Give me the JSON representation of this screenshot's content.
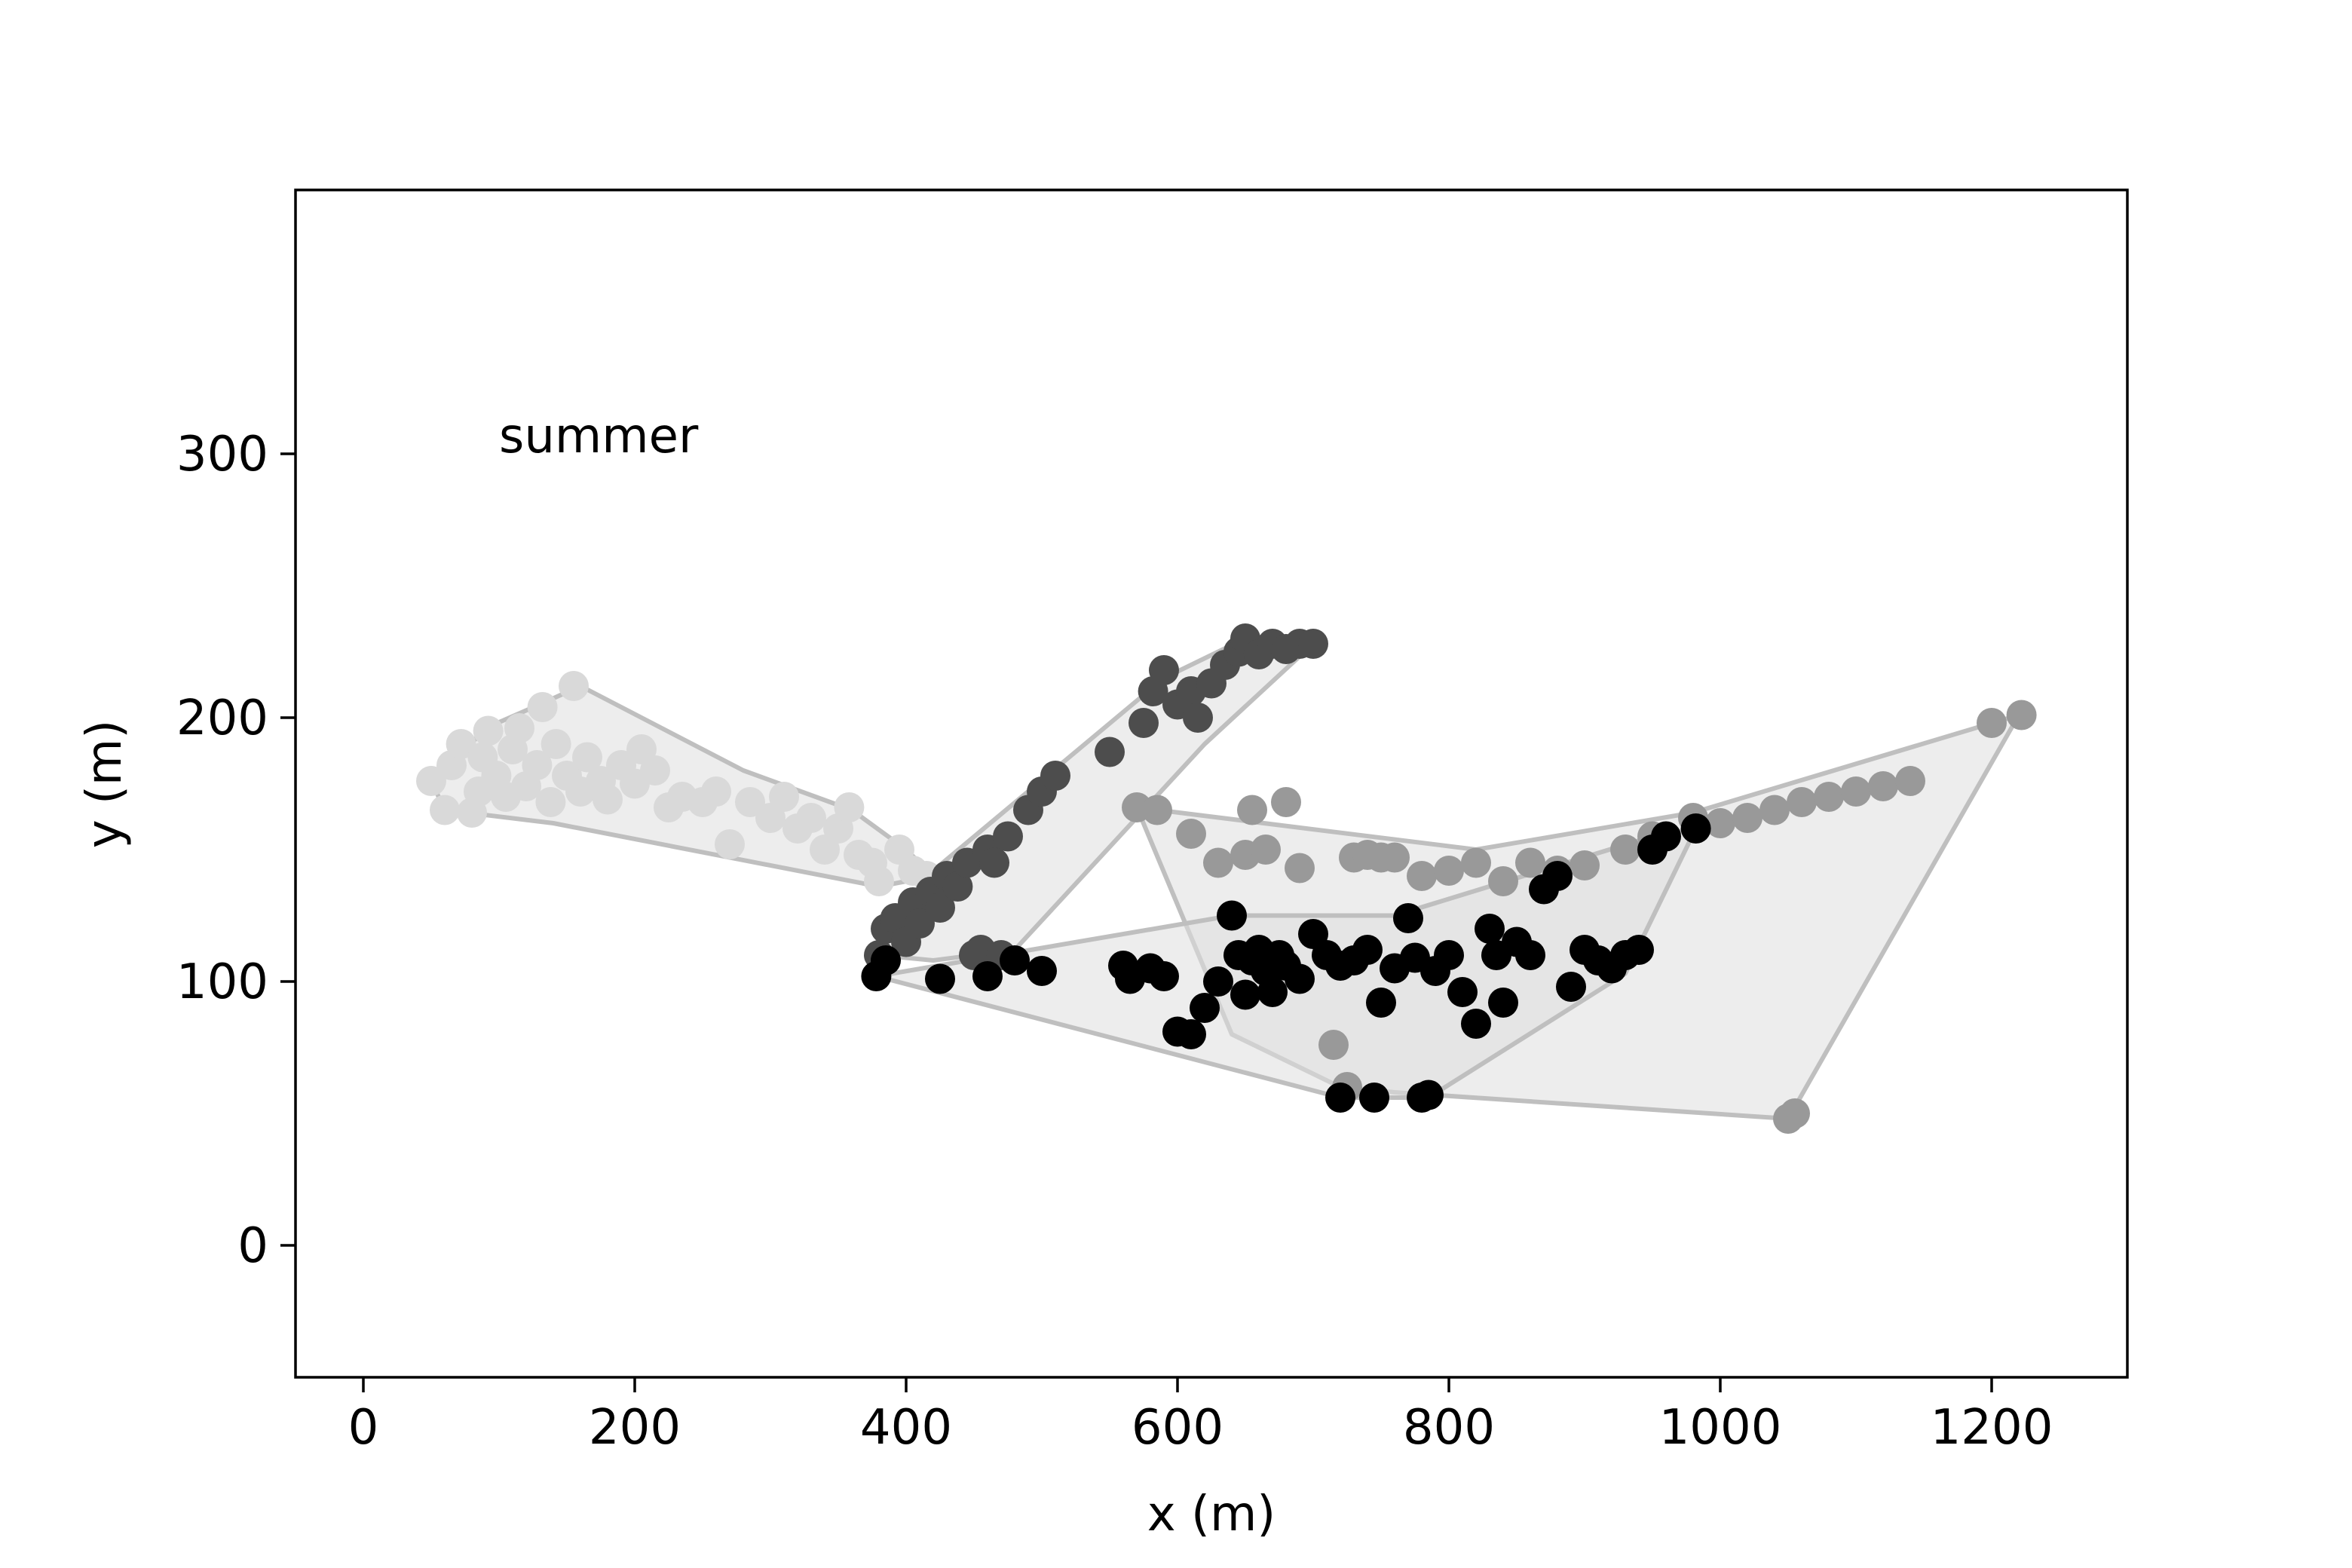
{
  "chart_data": {
    "type": "scatter",
    "title": "",
    "xlabel": "x (m)",
    "ylabel": "y (m)",
    "xlim": [
      -50,
      1300
    ],
    "ylim": [
      -50,
      400
    ],
    "xticks": [
      0,
      200,
      400,
      600,
      800,
      1000,
      1200
    ],
    "yticks": [
      0,
      100,
      200,
      300
    ],
    "grid": false,
    "annotations": [
      {
        "text": "summer",
        "x": 100,
        "y": 300
      }
    ],
    "series": [
      {
        "color": "#d9d9d9",
        "hull": [
          [
            50,
            176
          ],
          [
            60,
            165
          ],
          [
            140,
            160
          ],
          [
            380,
            136
          ],
          [
            420,
            140
          ],
          [
            400,
            150
          ],
          [
            360,
            165
          ],
          [
            280,
            180
          ],
          [
            160,
            212
          ],
          [
            130,
            205
          ],
          [
            90,
            196
          ],
          [
            70,
            185
          ]
        ],
        "points": [
          [
            50,
            176
          ],
          [
            60,
            165
          ],
          [
            65,
            182
          ],
          [
            72,
            190
          ],
          [
            80,
            164
          ],
          [
            85,
            172
          ],
          [
            88,
            185
          ],
          [
            92,
            195
          ],
          [
            98,
            178
          ],
          [
            105,
            170
          ],
          [
            110,
            188
          ],
          [
            115,
            196
          ],
          [
            120,
            174
          ],
          [
            128,
            182
          ],
          [
            132,
            204
          ],
          [
            138,
            168
          ],
          [
            142,
            190
          ],
          [
            150,
            178
          ],
          [
            155,
            212
          ],
          [
            160,
            172
          ],
          [
            165,
            185
          ],
          [
            175,
            176
          ],
          [
            180,
            169
          ],
          [
            190,
            182
          ],
          [
            200,
            175
          ],
          [
            205,
            188
          ],
          [
            215,
            180
          ],
          [
            225,
            166
          ],
          [
            235,
            170
          ],
          [
            250,
            168
          ],
          [
            260,
            172
          ],
          [
            270,
            152
          ],
          [
            285,
            168
          ],
          [
            300,
            162
          ],
          [
            310,
            170
          ],
          [
            320,
            158
          ],
          [
            330,
            162
          ],
          [
            340,
            150
          ],
          [
            350,
            158
          ],
          [
            358,
            166
          ],
          [
            365,
            148
          ],
          [
            375,
            145
          ],
          [
            380,
            138
          ],
          [
            395,
            150
          ],
          [
            405,
            142
          ],
          [
            415,
            140
          ]
        ]
      },
      {
        "color": "#4d4d4d",
        "hull": [
          [
            380,
            110
          ],
          [
            385,
            118
          ],
          [
            420,
            142
          ],
          [
            590,
            215
          ],
          [
            650,
            230
          ],
          [
            700,
            228
          ],
          [
            620,
            190
          ],
          [
            480,
            112
          ],
          [
            420,
            108
          ]
        ],
        "points": [
          [
            380,
            110
          ],
          [
            385,
            120
          ],
          [
            392,
            124
          ],
          [
            400,
            115
          ],
          [
            405,
            130
          ],
          [
            410,
            122
          ],
          [
            418,
            134
          ],
          [
            425,
            128
          ],
          [
            430,
            140
          ],
          [
            438,
            136
          ],
          [
            445,
            145
          ],
          [
            450,
            110
          ],
          [
            455,
            112
          ],
          [
            460,
            150
          ],
          [
            465,
            145
          ],
          [
            470,
            110
          ],
          [
            475,
            155
          ],
          [
            490,
            165
          ],
          [
            500,
            172
          ],
          [
            510,
            178
          ],
          [
            550,
            187
          ],
          [
            575,
            198
          ],
          [
            582,
            210
          ],
          [
            590,
            218
          ],
          [
            600,
            205
          ],
          [
            610,
            210
          ],
          [
            615,
            200
          ],
          [
            625,
            213
          ],
          [
            635,
            220
          ],
          [
            645,
            225
          ],
          [
            650,
            230
          ],
          [
            660,
            224
          ],
          [
            670,
            228
          ],
          [
            680,
            226
          ],
          [
            690,
            228
          ],
          [
            700,
            228
          ]
        ]
      },
      {
        "color": "#999999",
        "hull": [
          [
            570,
            166
          ],
          [
            640,
            80
          ],
          [
            720,
            60
          ],
          [
            760,
            58
          ],
          [
            1050,
            48
          ],
          [
            1220,
            201
          ],
          [
            980,
            164
          ],
          [
            820,
            150
          ]
        ],
        "points": [
          [
            570,
            166
          ],
          [
            585,
            165
          ],
          [
            610,
            156
          ],
          [
            630,
            145
          ],
          [
            650,
            148
          ],
          [
            655,
            165
          ],
          [
            665,
            150
          ],
          [
            680,
            168
          ],
          [
            690,
            143
          ],
          [
            715,
            76
          ],
          [
            725,
            60
          ],
          [
            730,
            147
          ],
          [
            740,
            148
          ],
          [
            750,
            147
          ],
          [
            760,
            147
          ],
          [
            780,
            140
          ],
          [
            800,
            142
          ],
          [
            820,
            145
          ],
          [
            840,
            138
          ],
          [
            860,
            145
          ],
          [
            880,
            142
          ],
          [
            900,
            144
          ],
          [
            930,
            150
          ],
          [
            950,
            155
          ],
          [
            980,
            162
          ],
          [
            1000,
            160
          ],
          [
            1020,
            162
          ],
          [
            1040,
            165
          ],
          [
            1060,
            168
          ],
          [
            1080,
            170
          ],
          [
            1100,
            172
          ],
          [
            1120,
            174
          ],
          [
            1140,
            176
          ],
          [
            1050,
            48
          ],
          [
            1055,
            50
          ],
          [
            1200,
            198
          ],
          [
            1222,
            201
          ]
        ]
      },
      {
        "color": "#000000",
        "hull": [
          [
            378,
            102
          ],
          [
            720,
            56
          ],
          [
            785,
            56
          ],
          [
            930,
            103
          ],
          [
            982,
            158
          ],
          [
            950,
            155
          ],
          [
            760,
            125
          ],
          [
            640,
            125
          ]
        ],
        "points": [
          [
            378,
            102
          ],
          [
            385,
            108
          ],
          [
            425,
            101
          ],
          [
            460,
            102
          ],
          [
            480,
            108
          ],
          [
            500,
            104
          ],
          [
            560,
            106
          ],
          [
            565,
            101
          ],
          [
            580,
            105
          ],
          [
            590,
            102
          ],
          [
            600,
            81
          ],
          [
            610,
            80
          ],
          [
            620,
            90
          ],
          [
            630,
            100
          ],
          [
            640,
            125
          ],
          [
            645,
            110
          ],
          [
            650,
            95
          ],
          [
            655,
            108
          ],
          [
            660,
            112
          ],
          [
            665,
            104
          ],
          [
            670,
            96
          ],
          [
            675,
            110
          ],
          [
            680,
            106
          ],
          [
            690,
            101
          ],
          [
            700,
            118
          ],
          [
            710,
            110
          ],
          [
            720,
            106
          ],
          [
            720,
            56
          ],
          [
            730,
            108
          ],
          [
            740,
            112
          ],
          [
            745,
            56
          ],
          [
            750,
            92
          ],
          [
            760,
            105
          ],
          [
            770,
            124
          ],
          [
            775,
            109
          ],
          [
            780,
            56
          ],
          [
            785,
            57
          ],
          [
            790,
            104
          ],
          [
            800,
            110
          ],
          [
            810,
            96
          ],
          [
            820,
            84
          ],
          [
            830,
            120
          ],
          [
            835,
            110
          ],
          [
            840,
            92
          ],
          [
            850,
            115
          ],
          [
            860,
            110
          ],
          [
            870,
            135
          ],
          [
            880,
            140
          ],
          [
            890,
            98
          ],
          [
            900,
            112
          ],
          [
            910,
            108
          ],
          [
            920,
            105
          ],
          [
            930,
            110
          ],
          [
            940,
            112
          ],
          [
            950,
            150
          ],
          [
            960,
            155
          ],
          [
            982,
            158
          ]
        ]
      }
    ]
  }
}
